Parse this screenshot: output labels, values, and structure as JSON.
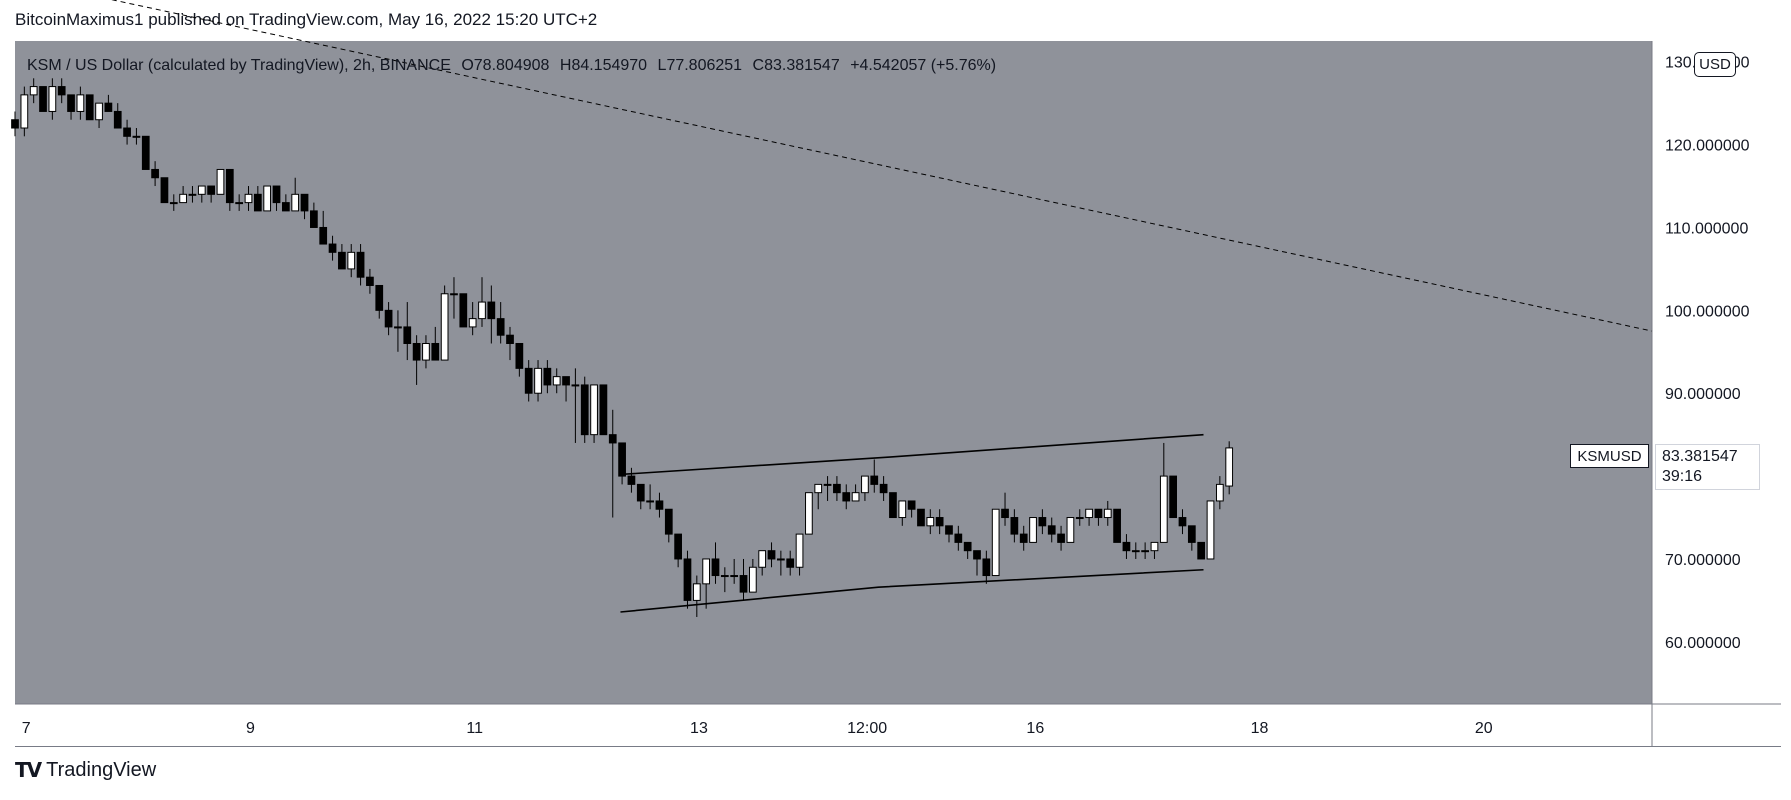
{
  "header": {
    "published": "BitcoinMaximus1 published on TradingView.com, May 16, 2022 15:20 UTC+2"
  },
  "legend": {
    "symbol": "KSM / US Dollar (calculated by TradingView), 2h, BINANCE",
    "o_label": "O",
    "o_value": "78.804908",
    "h_label": "H",
    "h_value": "84.154970",
    "l_label": "L",
    "l_value": "77.806251",
    "c_label": "C",
    "c_value": "83.381547",
    "change": "+4.542057 (+5.76%)"
  },
  "currency_button": "USD",
  "price_tag": {
    "symbol": "KSMUSD",
    "price": "83.381547",
    "countdown": "39:16"
  },
  "footer": {
    "brand": "TradingView"
  },
  "colors": {
    "plot_bg": "#8f929a",
    "bull": "#ffffff",
    "bear": "#000000",
    "text": "#131722"
  },
  "chart_data": {
    "type": "candlestick",
    "x_tick_labels": [
      {
        "label": "7",
        "day": 7
      },
      {
        "label": "9",
        "day": 9
      },
      {
        "label": "11",
        "day": 11
      },
      {
        "label": "13",
        "day": 13
      },
      {
        "label": "12:00",
        "day": 14.5
      },
      {
        "label": "16",
        "day": 16
      },
      {
        "label": "18",
        "day": 18
      },
      {
        "label": "20",
        "day": 20
      }
    ],
    "y_ticks": [
      {
        "label": "120.000000",
        "value": 120
      },
      {
        "label": "110.000000",
        "value": 110
      },
      {
        "label": "100.000000",
        "value": 100
      },
      {
        "label": "90.000000",
        "value": 90
      },
      {
        "label": "70.000000",
        "value": 70
      },
      {
        "label": "60.000000",
        "value": 60
      }
    ],
    "y_partial_top_label": "130.000000",
    "ylim": [
      52.5,
      132.5
    ],
    "xlim_days": [
      6.9,
      21.5
    ],
    "candles_anchor": {
      "first_day": 6.9,
      "period_days": 0.0833
    },
    "candles": [
      [
        123,
        124,
        121,
        122
      ],
      [
        122,
        127,
        121,
        126
      ],
      [
        126,
        128,
        125,
        127
      ],
      [
        127,
        127,
        124,
        124
      ],
      [
        124,
        128,
        123,
        127
      ],
      [
        127,
        128,
        125,
        126
      ],
      [
        126,
        126,
        123,
        124
      ],
      [
        124,
        127,
        123,
        126
      ],
      [
        126,
        126,
        123,
        123
      ],
      [
        123,
        125,
        122,
        125
      ],
      [
        125,
        126,
        124,
        124
      ],
      [
        124,
        125,
        122,
        122
      ],
      [
        122,
        123,
        120,
        121
      ],
      [
        121,
        122,
        120,
        121
      ],
      [
        121,
        121,
        117,
        117
      ],
      [
        117,
        118,
        115,
        116
      ],
      [
        116,
        116,
        113,
        113
      ],
      [
        113,
        114,
        112,
        113
      ],
      [
        113,
        115,
        113,
        114
      ],
      [
        114,
        115,
        113,
        114
      ],
      [
        114,
        115,
        113,
        115
      ],
      [
        115,
        115,
        113,
        114
      ],
      [
        114,
        117,
        114,
        117
      ],
      [
        117,
        117,
        112,
        113
      ],
      [
        113,
        114,
        112,
        113
      ],
      [
        113,
        115,
        112,
        114
      ],
      [
        114,
        115,
        112,
        112
      ],
      [
        112,
        115,
        112,
        115
      ],
      [
        115,
        115,
        112,
        113
      ],
      [
        113,
        114,
        112,
        112
      ],
      [
        112,
        116,
        112,
        114
      ],
      [
        114,
        114,
        111,
        112
      ],
      [
        112,
        113,
        110,
        110
      ],
      [
        110,
        112,
        108,
        108
      ],
      [
        108,
        109,
        106,
        107
      ],
      [
        107,
        108,
        105,
        105
      ],
      [
        105,
        108,
        104,
        107
      ],
      [
        107,
        108,
        103,
        104
      ],
      [
        104,
        105,
        102,
        103
      ],
      [
        103,
        103,
        99,
        100
      ],
      [
        100,
        101,
        97,
        98
      ],
      [
        98,
        100,
        95,
        98
      ],
      [
        98,
        101,
        94,
        96
      ],
      [
        96,
        97,
        91,
        94
      ],
      [
        94,
        97,
        93,
        96
      ],
      [
        96,
        98,
        94,
        94
      ],
      [
        94,
        103,
        94,
        102
      ],
      [
        102,
        104,
        99,
        102
      ],
      [
        102,
        102,
        98,
        98
      ],
      [
        98,
        101,
        97,
        99
      ],
      [
        99,
        104,
        98,
        101
      ],
      [
        101,
        103,
        96,
        99
      ],
      [
        99,
        101,
        96,
        97
      ],
      [
        97,
        98,
        94,
        96
      ],
      [
        96,
        96,
        92,
        93
      ],
      [
        93,
        94,
        89,
        90
      ],
      [
        90,
        94,
        89,
        93
      ],
      [
        93,
        94,
        90,
        91
      ],
      [
        91,
        93,
        90,
        92
      ],
      [
        92,
        92,
        89,
        91
      ],
      [
        91,
        93,
        84,
        91
      ],
      [
        91,
        92,
        84,
        85
      ],
      [
        85,
        91,
        84,
        91
      ],
      [
        91,
        91,
        85,
        85
      ],
      [
        85,
        88,
        75,
        84
      ],
      [
        84,
        84,
        79,
        80
      ],
      [
        80,
        81,
        78,
        79
      ],
      [
        79,
        79,
        76,
        77
      ],
      [
        77,
        79,
        76,
        77
      ],
      [
        77,
        78,
        75,
        76
      ],
      [
        76,
        76,
        72,
        73
      ],
      [
        73,
        73,
        69,
        70
      ],
      [
        70,
        71,
        64,
        65
      ],
      [
        65,
        68,
        63,
        67
      ],
      [
        67,
        70,
        64,
        70
      ],
      [
        70,
        72,
        67,
        68
      ],
      [
        68,
        69,
        66,
        68
      ],
      [
        68,
        70,
        67,
        68
      ],
      [
        68,
        70,
        65,
        66
      ],
      [
        66,
        70,
        66,
        69
      ],
      [
        69,
        71,
        68,
        71
      ],
      [
        71,
        72,
        69,
        70
      ],
      [
        70,
        71,
        68,
        70
      ],
      [
        70,
        71,
        68,
        69
      ],
      [
        69,
        73,
        68,
        73
      ],
      [
        73,
        78,
        73,
        78
      ],
      [
        78,
        79,
        76,
        79
      ],
      [
        79,
        80,
        77,
        79
      ],
      [
        79,
        80,
        77,
        78
      ],
      [
        78,
        79,
        76,
        77
      ],
      [
        77,
        79,
        77,
        78
      ],
      [
        78,
        80,
        77,
        80
      ],
      [
        80,
        82,
        78,
        79
      ],
      [
        79,
        80,
        77,
        78
      ],
      [
        78,
        78,
        75,
        75
      ],
      [
        75,
        77,
        74,
        77
      ],
      [
        77,
        77,
        75,
        76
      ],
      [
        76,
        76,
        74,
        74
      ],
      [
        74,
        76,
        73,
        75
      ],
      [
        75,
        76,
        73,
        74
      ],
      [
        74,
        74,
        72,
        73
      ],
      [
        73,
        74,
        71,
        72
      ],
      [
        72,
        72,
        70,
        71
      ],
      [
        71,
        71,
        68,
        70
      ],
      [
        70,
        71,
        67,
        68
      ],
      [
        68,
        76,
        68,
        76
      ],
      [
        76,
        78,
        74,
        75
      ],
      [
        75,
        76,
        72,
        73
      ],
      [
        73,
        74,
        71,
        72
      ],
      [
        72,
        75,
        72,
        75
      ],
      [
        75,
        76,
        73,
        74
      ],
      [
        74,
        75,
        72,
        73
      ],
      [
        73,
        74,
        71,
        72
      ],
      [
        72,
        75,
        72,
        75
      ],
      [
        75,
        76,
        74,
        75
      ],
      [
        75,
        76,
        74,
        76
      ],
      [
        76,
        76,
        74,
        75
      ],
      [
        75,
        77,
        74,
        76
      ],
      [
        76,
        76,
        72,
        72
      ],
      [
        72,
        73,
        70,
        71
      ],
      [
        71,
        72,
        70,
        71
      ],
      [
        71,
        72,
        70,
        71
      ],
      [
        71,
        72,
        70,
        72
      ],
      [
        72,
        84,
        72,
        80
      ],
      [
        80,
        80,
        75,
        75
      ],
      [
        75,
        76,
        73,
        74
      ],
      [
        74,
        74,
        71,
        72
      ],
      [
        72,
        72,
        70,
        70
      ],
      [
        70,
        77,
        70,
        77
      ],
      [
        77,
        80,
        76,
        79
      ],
      [
        78.8,
        84.2,
        77.8,
        83.4
      ]
    ],
    "annotations": {
      "channel_upper": [
        [
          12.3,
          80.2
        ],
        [
          14.7,
          82.3
        ],
        [
          17.5,
          85.0
        ]
      ],
      "channel_lower": [
        [
          12.3,
          63.6
        ],
        [
          14.6,
          66.6
        ],
        [
          17.5,
          68.7
        ]
      ],
      "downtrend_dashed": [
        [
          6.9,
          140
        ],
        [
          21.5,
          97.5
        ]
      ]
    }
  }
}
